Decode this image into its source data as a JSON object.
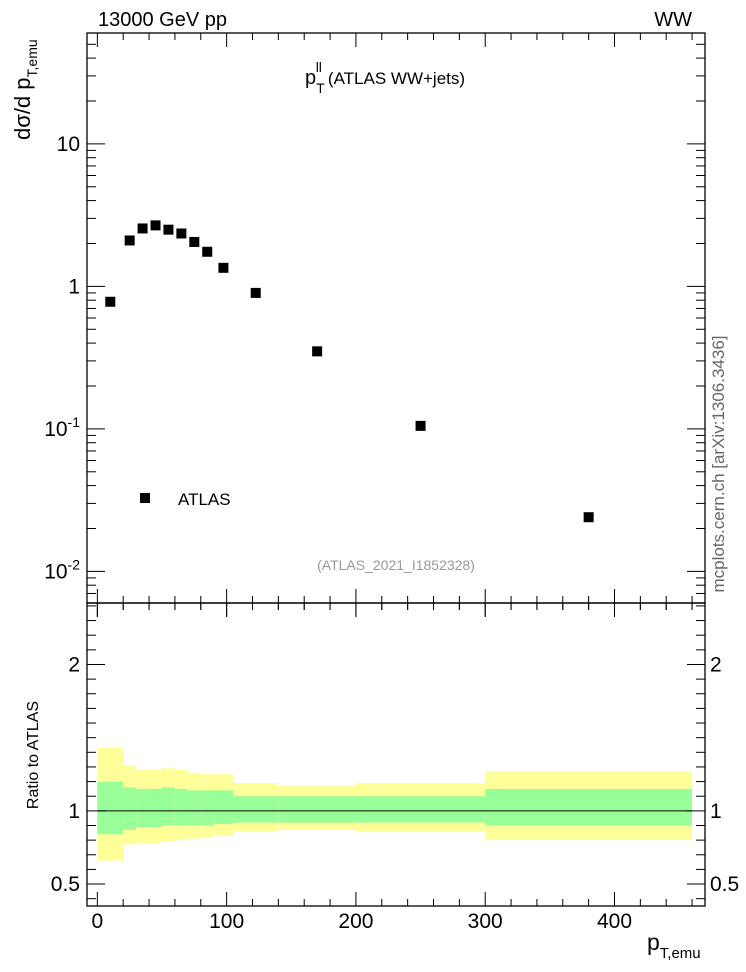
{
  "header": {
    "left": "13000 GeV pp",
    "right": "WW"
  },
  "side_label": "mcplots.cern.ch [arXiv:1306.3436]",
  "chart_data": {
    "type": "scatter",
    "title_main": "p",
    "title_sup": "ll",
    "title_sub": "T",
    "title_rest": "(ATLAS WW+jets)",
    "analysis_label": "(ATLAS_2021_I1852328)",
    "ylabel_main": "dσ/d p",
    "ylabel_sub": "T,emu",
    "xlabel_main": "p",
    "xlabel_sub": "T,emu",
    "ratio_ylabel": "Ratio to ATLAS",
    "legend": [
      {
        "name": "ATLAS",
        "marker": "square",
        "color": "#000000"
      }
    ],
    "yscale": "log",
    "ylim": [
      0.006,
      60
    ],
    "xlim": [
      -8,
      470
    ],
    "x_ticks": [
      0,
      100,
      200,
      300,
      400
    ],
    "y_ticks_main": [
      {
        "value": 0.01,
        "base": "10",
        "exp": "-2"
      },
      {
        "value": 0.1,
        "base": "10",
        "exp": "-1"
      },
      {
        "value": 1,
        "base": "1",
        "exp": ""
      },
      {
        "value": 10,
        "base": "10",
        "exp": ""
      }
    ],
    "ratio_ylim": [
      0.35,
      2.42
    ],
    "ratio_ticks": [
      0.5,
      1,
      2
    ],
    "points": [
      {
        "x": 10,
        "y": 0.78
      },
      {
        "x": 25,
        "y": 2.1
      },
      {
        "x": 35,
        "y": 2.55
      },
      {
        "x": 45,
        "y": 2.68
      },
      {
        "x": 55,
        "y": 2.5
      },
      {
        "x": 65,
        "y": 2.35
      },
      {
        "x": 75,
        "y": 2.05
      },
      {
        "x": 85,
        "y": 1.75
      },
      {
        "x": 97.5,
        "y": 1.35
      },
      {
        "x": 122.5,
        "y": 0.9
      },
      {
        "x": 170,
        "y": 0.35
      },
      {
        "x": 250,
        "y": 0.105
      },
      {
        "x": 380,
        "y": 0.024
      }
    ],
    "ratio_bands": [
      {
        "xlo": 0,
        "xhi": 20,
        "inner": [
          0.84,
          1.2
        ],
        "outer": [
          0.66,
          1.43
        ]
      },
      {
        "xlo": 20,
        "xhi": 30,
        "inner": [
          0.87,
          1.16
        ],
        "outer": [
          0.77,
          1.31
        ]
      },
      {
        "xlo": 30,
        "xhi": 40,
        "inner": [
          0.89,
          1.15
        ],
        "outer": [
          0.78,
          1.28
        ]
      },
      {
        "xlo": 40,
        "xhi": 50,
        "inner": [
          0.89,
          1.15
        ],
        "outer": [
          0.78,
          1.28
        ]
      },
      {
        "xlo": 50,
        "xhi": 60,
        "inner": [
          0.9,
          1.16
        ],
        "outer": [
          0.79,
          1.29
        ]
      },
      {
        "xlo": 60,
        "xhi": 70,
        "inner": [
          0.9,
          1.15
        ],
        "outer": [
          0.8,
          1.28
        ]
      },
      {
        "xlo": 70,
        "xhi": 80,
        "inner": [
          0.9,
          1.14
        ],
        "outer": [
          0.81,
          1.26
        ]
      },
      {
        "xlo": 80,
        "xhi": 90,
        "inner": [
          0.9,
          1.14
        ],
        "outer": [
          0.82,
          1.25
        ]
      },
      {
        "xlo": 90,
        "xhi": 105,
        "inner": [
          0.91,
          1.14
        ],
        "outer": [
          0.83,
          1.25
        ]
      },
      {
        "xlo": 105,
        "xhi": 140,
        "inner": [
          0.92,
          1.1
        ],
        "outer": [
          0.86,
          1.19
        ]
      },
      {
        "xlo": 140,
        "xhi": 200,
        "inner": [
          0.92,
          1.1
        ],
        "outer": [
          0.87,
          1.17
        ]
      },
      {
        "xlo": 200,
        "xhi": 300,
        "inner": [
          0.92,
          1.1
        ],
        "outer": [
          0.86,
          1.19
        ]
      },
      {
        "xlo": 300,
        "xhi": 460,
        "inner": [
          0.9,
          1.15
        ],
        "outer": [
          0.8,
          1.27
        ]
      }
    ],
    "colors": {
      "inner_band": "#99ff99",
      "outer_band": "#ffff99",
      "marker": "#000000",
      "grey_text": "#999999"
    }
  }
}
